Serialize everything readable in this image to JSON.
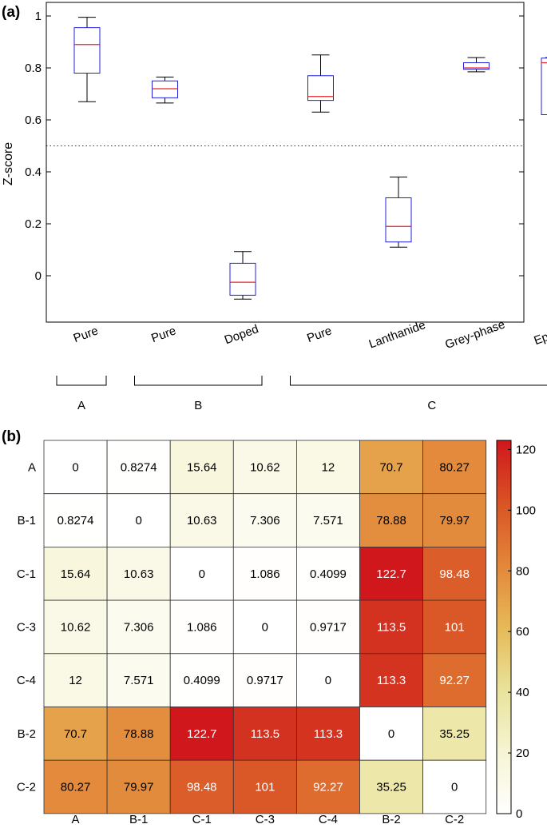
{
  "chart_data": [
    {
      "panel_label": "(a)",
      "type": "box",
      "ylabel": "Z-score",
      "ylim": [
        -0.18,
        1.06
      ],
      "yticks": [
        0,
        0.2,
        0.4,
        0.6,
        0.8,
        1
      ],
      "ytick_labels": [
        "0",
        "0.2",
        "0.4",
        "0.6",
        "0.8",
        "1"
      ],
      "reference_line": 0.5,
      "categories": [
        "Pure",
        "Pure",
        "Doped",
        "Pure",
        "Lanthanide",
        "Grey-phase",
        "Epsilon"
      ],
      "boxes": [
        {
          "whisker_low": 0.67,
          "q1": 0.78,
          "median": 0.89,
          "q3": 0.955,
          "whisker_high": 0.995
        },
        {
          "whisker_low": 0.665,
          "q1": 0.685,
          "median": 0.72,
          "q3": 0.75,
          "whisker_high": 0.765
        },
        {
          "whisker_low": -0.09,
          "q1": -0.075,
          "median": -0.025,
          "q3": 0.048,
          "whisker_high": 0.093
        },
        {
          "whisker_low": 0.63,
          "q1": 0.675,
          "median": 0.69,
          "q3": 0.77,
          "whisker_high": 0.85
        },
        {
          "whisker_low": 0.11,
          "q1": 0.13,
          "median": 0.19,
          "q3": 0.3,
          "whisker_high": 0.38
        },
        {
          "whisker_low": 0.785,
          "q1": 0.795,
          "median": 0.8,
          "q3": 0.82,
          "whisker_high": 0.84
        },
        {
          "whisker_low": 0.62,
          "q1": 0.62,
          "median": 0.82,
          "q3": 0.838,
          "whisker_high": 0.84
        }
      ],
      "groups": [
        {
          "label": "A",
          "start": 0,
          "end": 0
        },
        {
          "label": "B",
          "start": 1,
          "end": 2
        },
        {
          "label": "C",
          "start": 3,
          "end": 6
        }
      ],
      "colors": {
        "box": "#1f1fe0",
        "median": "#e8252a",
        "whisker": "#000000",
        "refline": "#333333"
      }
    },
    {
      "panel_label": "(b)",
      "type": "heatmap",
      "rows": [
        "A",
        "B-1",
        "C-1",
        "C-3",
        "C-4",
        "B-2",
        "C-2"
      ],
      "columns": [
        "A",
        "B-1",
        "C-1",
        "C-3",
        "C-4",
        "B-2",
        "C-2"
      ],
      "values": [
        [
          "0",
          "0.8274",
          "15.64",
          "10.62",
          "12",
          "70.7",
          "80.27"
        ],
        [
          "0.8274",
          "0",
          "10.63",
          "7.306",
          "7.571",
          "78.88",
          "79.97"
        ],
        [
          "15.64",
          "10.63",
          "0",
          "1.086",
          "0.4099",
          "122.7",
          "98.48"
        ],
        [
          "10.62",
          "7.306",
          "1.086",
          "0",
          "0.9717",
          "113.5",
          "101"
        ],
        [
          "12",
          "7.571",
          "0.4099",
          "0.9717",
          "0",
          "113.3",
          "92.27"
        ],
        [
          "70.7",
          "78.88",
          "122.7",
          "113.5",
          "113.3",
          "0",
          "35.25"
        ],
        [
          "80.27",
          "79.97",
          "98.48",
          "101",
          "92.27",
          "35.25",
          "0"
        ]
      ],
      "colorbar": {
        "min": 0,
        "max": 123,
        "ticks": [
          "0",
          "20",
          "40",
          "60",
          "80",
          "100",
          "120"
        ],
        "colormap": [
          "#ffffff",
          "#f6f4d3",
          "#e9e29a",
          "#e6b957",
          "#e3863a",
          "#d95325",
          "#d0161c"
        ]
      }
    }
  ]
}
